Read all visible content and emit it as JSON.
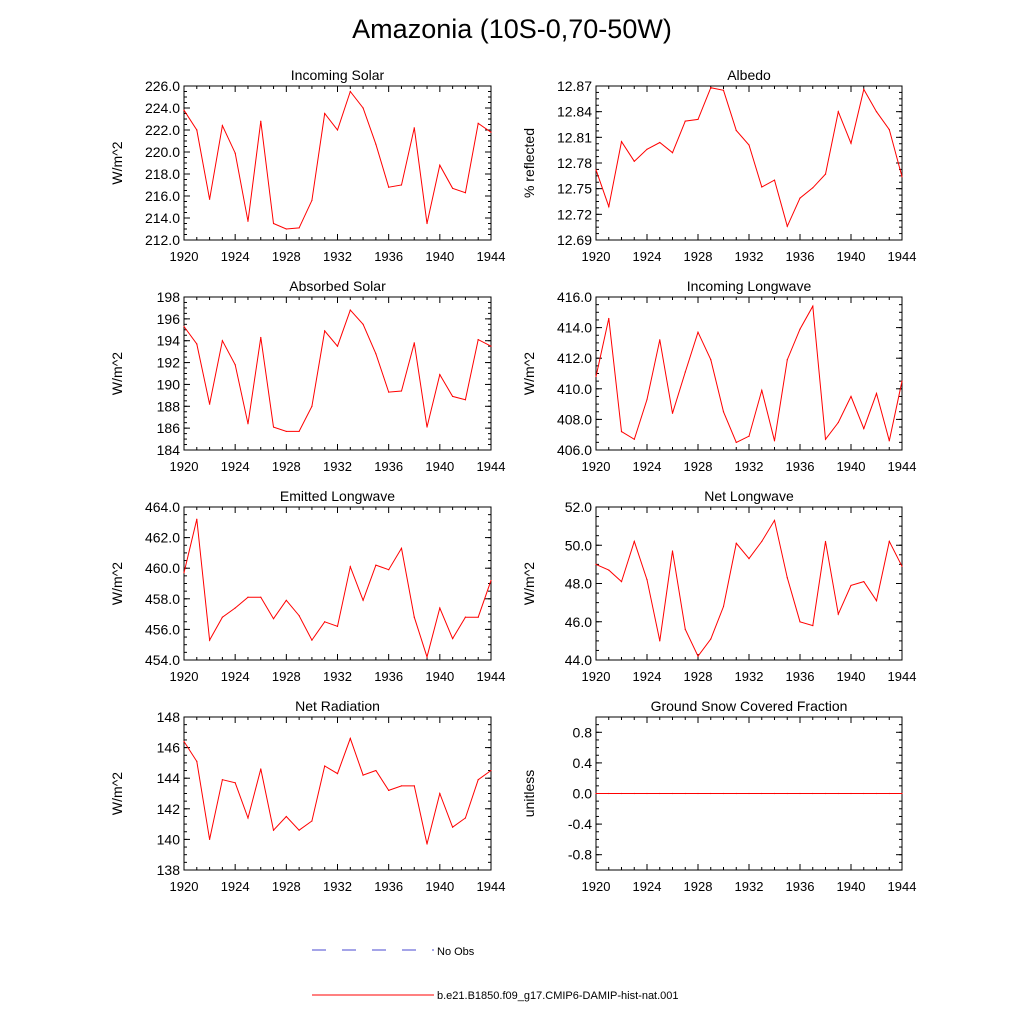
{
  "figure": {
    "title": "Amazonia (10S-0,70-50W)"
  },
  "legend": {
    "entries": [
      {
        "label": "No Obs",
        "color": "#4a4ad0",
        "style": "dashed"
      },
      {
        "label": "b.e21.B1850.f09_g17.CMIP6-DAMIP-hist-nat.001",
        "color": "#ff0000",
        "style": "solid"
      }
    ]
  },
  "chart_data": [
    {
      "type": "line",
      "title": "Incoming Solar",
      "ylabel": "W/m^2",
      "xlabel": "",
      "xlim": [
        1920,
        1944
      ],
      "ylim": [
        212,
        226
      ],
      "xticks": [
        1920,
        1924,
        1928,
        1932,
        1936,
        1940,
        1944
      ],
      "yticks": [
        "212.0",
        "214.0",
        "216.0",
        "218.0",
        "220.0",
        "222.0",
        "224.0",
        "226.0"
      ],
      "grid": false,
      "series": [
        {
          "name": "b.e21.B1850.f09_g17.CMIP6-DAMIP-hist-nat.001",
          "color": "#ff0000",
          "x": [
            1920,
            1921,
            1922,
            1923,
            1924,
            1925,
            1926,
            1927,
            1928,
            1929,
            1930,
            1931,
            1932,
            1933,
            1934,
            1935,
            1936,
            1937,
            1938,
            1939,
            1940,
            1941,
            1942,
            1943,
            1944
          ],
          "y": [
            223.8,
            222.0,
            215.7,
            222.4,
            219.9,
            213.7,
            222.8,
            213.5,
            213.0,
            213.1,
            215.6,
            223.5,
            222.0,
            225.5,
            224.0,
            220.7,
            216.8,
            217.0,
            222.2,
            213.5,
            218.8,
            216.7,
            216.3,
            222.6,
            221.8
          ]
        }
      ]
    },
    {
      "type": "line",
      "title": "Albedo",
      "ylabel": "% reflected",
      "xlabel": "",
      "xlim": [
        1920,
        1944
      ],
      "ylim": [
        12.69,
        12.87
      ],
      "xticks": [
        1920,
        1924,
        1928,
        1932,
        1936,
        1940,
        1944
      ],
      "yticks": [
        "12.69",
        "12.72",
        "12.75",
        "12.78",
        "12.81",
        "12.84",
        "12.87"
      ],
      "grid": false,
      "series": [
        {
          "name": "b.e21.B1850.f09_g17.CMIP6-DAMIP-hist-nat.001",
          "color": "#ff0000",
          "x": [
            1920,
            1921,
            1922,
            1923,
            1924,
            1925,
            1926,
            1927,
            1928,
            1929,
            1930,
            1931,
            1932,
            1933,
            1934,
            1935,
            1936,
            1937,
            1938,
            1939,
            1940,
            1941,
            1942,
            1943,
            1944
          ],
          "y": [
            12.772,
            12.729,
            12.805,
            12.782,
            12.796,
            12.804,
            12.792,
            12.829,
            12.831,
            12.868,
            12.865,
            12.818,
            12.801,
            12.752,
            12.76,
            12.706,
            12.739,
            12.751,
            12.767,
            12.84,
            12.803,
            12.866,
            12.84,
            12.819,
            12.764
          ]
        }
      ]
    },
    {
      "type": "line",
      "title": "Absorbed Solar",
      "ylabel": "W/m^2",
      "xlabel": "",
      "xlim": [
        1920,
        1944
      ],
      "ylim": [
        184,
        198
      ],
      "xticks": [
        1920,
        1924,
        1928,
        1932,
        1936,
        1940,
        1944
      ],
      "yticks": [
        "184",
        "186",
        "188",
        "190",
        "192",
        "194",
        "196",
        "198"
      ],
      "grid": false,
      "series": [
        {
          "name": "b.e21.B1850.f09_g17.CMIP6-DAMIP-hist-nat.001",
          "color": "#ff0000",
          "x": [
            1920,
            1921,
            1922,
            1923,
            1924,
            1925,
            1926,
            1927,
            1928,
            1929,
            1930,
            1931,
            1932,
            1933,
            1934,
            1935,
            1936,
            1937,
            1938,
            1939,
            1940,
            1941,
            1942,
            1943,
            1944
          ],
          "y": [
            195.3,
            193.7,
            188.2,
            194.0,
            191.8,
            186.4,
            194.3,
            186.1,
            185.7,
            185.7,
            188.0,
            194.9,
            193.5,
            196.8,
            195.5,
            192.8,
            189.3,
            189.4,
            193.8,
            186.1,
            190.9,
            188.9,
            188.6,
            194.1,
            193.5
          ]
        }
      ]
    },
    {
      "type": "line",
      "title": "Incoming Longwave",
      "ylabel": "W/m^2",
      "xlabel": "",
      "xlim": [
        1920,
        1944
      ],
      "ylim": [
        406,
        416
      ],
      "xticks": [
        1920,
        1924,
        1928,
        1932,
        1936,
        1940,
        1944
      ],
      "yticks": [
        "406.0",
        "408.0",
        "410.0",
        "412.0",
        "414.0",
        "416.0"
      ],
      "grid": false,
      "series": [
        {
          "name": "b.e21.B1850.f09_g17.CMIP6-DAMIP-hist-nat.001",
          "color": "#ff0000",
          "x": [
            1920,
            1921,
            1922,
            1923,
            1924,
            1925,
            1926,
            1927,
            1928,
            1929,
            1930,
            1931,
            1932,
            1933,
            1934,
            1935,
            1936,
            1937,
            1938,
            1939,
            1940,
            1941,
            1942,
            1943,
            1944
          ],
          "y": [
            410.8,
            414.6,
            407.2,
            406.7,
            409.3,
            413.2,
            408.4,
            411.1,
            413.7,
            411.9,
            408.5,
            406.5,
            406.9,
            409.9,
            406.6,
            411.9,
            413.9,
            415.4,
            406.7,
            407.8,
            409.5,
            407.4,
            409.7,
            406.6,
            410.5
          ]
        }
      ]
    },
    {
      "type": "line",
      "title": "Emitted Longwave",
      "ylabel": "W/m^2",
      "xlabel": "",
      "xlim": [
        1920,
        1944
      ],
      "ylim": [
        454,
        464
      ],
      "xticks": [
        1920,
        1924,
        1928,
        1932,
        1936,
        1940,
        1944
      ],
      "yticks": [
        "454.0",
        "456.0",
        "458.0",
        "460.0",
        "462.0",
        "464.0"
      ],
      "grid": false,
      "series": [
        {
          "name": "b.e21.B1850.f09_g17.CMIP6-DAMIP-hist-nat.001",
          "color": "#ff0000",
          "x": [
            1920,
            1921,
            1922,
            1923,
            1924,
            1925,
            1926,
            1927,
            1928,
            1929,
            1930,
            1931,
            1932,
            1933,
            1934,
            1935,
            1936,
            1937,
            1938,
            1939,
            1940,
            1941,
            1942,
            1943,
            1944
          ],
          "y": [
            459.7,
            463.2,
            455.3,
            456.8,
            457.4,
            458.1,
            458.1,
            456.7,
            457.9,
            456.9,
            455.3,
            456.5,
            456.2,
            460.1,
            457.9,
            460.2,
            459.9,
            461.3,
            456.8,
            454.2,
            457.4,
            455.4,
            456.8,
            456.8,
            459.2
          ]
        }
      ]
    },
    {
      "type": "line",
      "title": "Net Longwave",
      "ylabel": "W/m^2",
      "xlabel": "",
      "xlim": [
        1920,
        1944
      ],
      "ylim": [
        44,
        52
      ],
      "xticks": [
        1920,
        1924,
        1928,
        1932,
        1936,
        1940,
        1944
      ],
      "yticks": [
        "44.0",
        "46.0",
        "48.0",
        "50.0",
        "52.0"
      ],
      "grid": false,
      "series": [
        {
          "name": "b.e21.B1850.f09_g17.CMIP6-DAMIP-hist-nat.001",
          "color": "#ff0000",
          "x": [
            1920,
            1921,
            1922,
            1923,
            1924,
            1925,
            1926,
            1927,
            1928,
            1929,
            1930,
            1931,
            1932,
            1933,
            1934,
            1935,
            1936,
            1937,
            1938,
            1939,
            1940,
            1941,
            1942,
            1943,
            1944
          ],
          "y": [
            49.0,
            48.7,
            48.1,
            50.2,
            48.2,
            45.0,
            49.7,
            45.6,
            44.2,
            45.1,
            46.8,
            50.1,
            49.3,
            50.2,
            51.3,
            48.3,
            46.0,
            45.8,
            50.2,
            46.4,
            47.9,
            48.1,
            47.1,
            50.2,
            48.9
          ]
        }
      ]
    },
    {
      "type": "line",
      "title": "Net Radiation",
      "ylabel": "W/m^2",
      "xlabel": "",
      "xlim": [
        1920,
        1944
      ],
      "ylim": [
        138,
        148
      ],
      "xticks": [
        1920,
        1924,
        1928,
        1932,
        1936,
        1940,
        1944
      ],
      "yticks": [
        "138",
        "140",
        "142",
        "144",
        "146",
        "148"
      ],
      "grid": false,
      "series": [
        {
          "name": "b.e21.B1850.f09_g17.CMIP6-DAMIP-hist-nat.001",
          "color": "#ff0000",
          "x": [
            1920,
            1921,
            1922,
            1923,
            1924,
            1925,
            1926,
            1927,
            1928,
            1929,
            1930,
            1931,
            1932,
            1933,
            1934,
            1935,
            1936,
            1937,
            1938,
            1939,
            1940,
            1941,
            1942,
            1943,
            1944
          ],
          "y": [
            146.4,
            145.1,
            140.0,
            143.9,
            143.7,
            141.4,
            144.6,
            140.6,
            141.5,
            140.6,
            141.2,
            144.8,
            144.3,
            146.6,
            144.2,
            144.5,
            143.2,
            143.5,
            143.5,
            139.7,
            143.0,
            140.8,
            141.4,
            143.9,
            144.5
          ]
        }
      ]
    },
    {
      "type": "line",
      "title": "Ground Snow Covered Fraction",
      "ylabel": "unitless",
      "xlabel": "",
      "xlim": [
        1920,
        1944
      ],
      "ylim": [
        -1.0,
        1.0
      ],
      "xticks": [
        1920,
        1924,
        1928,
        1932,
        1936,
        1940,
        1944
      ],
      "yticks": [
        "-0.8",
        "-0.4",
        "0.0",
        "0.4",
        "0.8"
      ],
      "grid": false,
      "series": [
        {
          "name": "b.e21.B1850.f09_g17.CMIP6-DAMIP-hist-nat.001",
          "color": "#ff0000",
          "x": [
            1920,
            1921,
            1922,
            1923,
            1924,
            1925,
            1926,
            1927,
            1928,
            1929,
            1930,
            1931,
            1932,
            1933,
            1934,
            1935,
            1936,
            1937,
            1938,
            1939,
            1940,
            1941,
            1942,
            1943,
            1944
          ],
          "y": [
            0,
            0,
            0,
            0,
            0,
            0,
            0,
            0,
            0,
            0,
            0,
            0,
            0,
            0,
            0,
            0,
            0,
            0,
            0,
            0,
            0,
            0,
            0,
            0,
            0
          ]
        }
      ]
    }
  ]
}
